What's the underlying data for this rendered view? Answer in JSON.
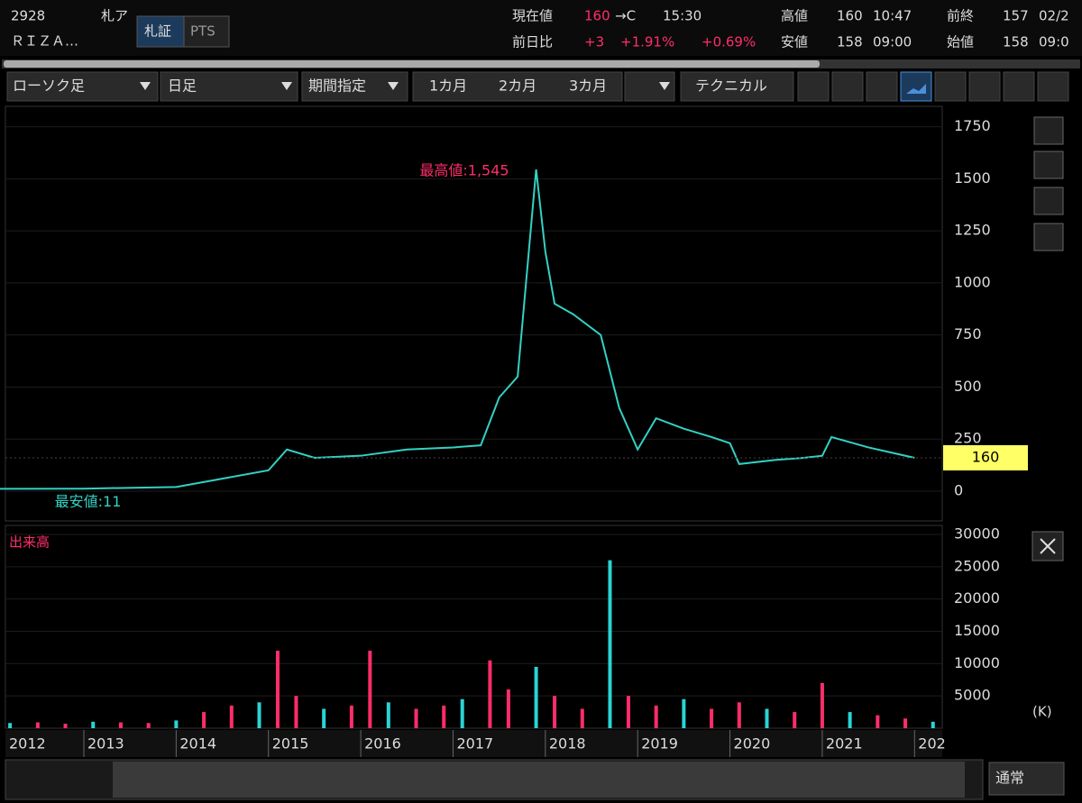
{
  "header": {
    "code": "2928",
    "market": "札ア",
    "name": "ＲＩＺＡ…",
    "tab_active": "札証",
    "tab_other": "PTS",
    "price_label": "現在値",
    "price": "160",
    "price_arrow": "→C",
    "price_time": "15:30",
    "high_label": "高値",
    "high": "160",
    "high_time": "10:47",
    "prev_label": "前終",
    "prev": "157",
    "prev_date": "02/2",
    "change_label": "前日比",
    "change": "+3",
    "change_pct": "+1.91%",
    "change_pct2": "+0.69%",
    "low_label": "安値",
    "low": "158",
    "low_time": "09:00",
    "open_label": "始値",
    "open": "158",
    "open_time": "09:0"
  },
  "toolbar": {
    "chart_type": "ローソク足",
    "interval": "日足",
    "period": "期間指定",
    "range1": "1カ月",
    "range2": "2カ月",
    "range3": "3カ月",
    "technical": "テクニカル"
  },
  "footer": {
    "mode": "通常"
  },
  "chart_data": [
    {
      "type": "line",
      "color": "#33d1c4",
      "ma_color": "#ff8fb0",
      "x": [
        2012.0,
        2013.0,
        2014.0,
        2014.5,
        2015.0,
        2015.2,
        2015.5,
        2016.0,
        2016.5,
        2017.0,
        2017.3,
        2017.5,
        2017.7,
        2017.9,
        2018.0,
        2018.1,
        2018.3,
        2018.6,
        2018.8,
        2019.0,
        2019.2,
        2019.5,
        2019.8,
        2020.0,
        2020.1,
        2020.5,
        2020.8,
        2021.0,
        2021.1,
        2021.5,
        2021.8,
        2022.0
      ],
      "values": [
        11,
        12,
        20,
        60,
        100,
        200,
        160,
        170,
        200,
        210,
        220,
        450,
        550,
        1545,
        1150,
        900,
        850,
        750,
        400,
        200,
        350,
        300,
        260,
        230,
        130,
        150,
        160,
        170,
        260,
        210,
        180,
        160
      ],
      "xlim": [
        2012.15,
        2022.3
      ],
      "ylim": [
        -143,
        1848
      ],
      "yticks": [
        0,
        250,
        500,
        750,
        1000,
        1250,
        1500,
        1750
      ],
      "current_value": 160,
      "max_label": "最高値:1,545",
      "min_label": "最安値:11"
    },
    {
      "type": "bar",
      "title": "出来高",
      "unit": "(K)",
      "color": "#ff2d6a",
      "alt_color": "#2ad4d4",
      "x": [
        2012.2,
        2012.5,
        2012.8,
        2013.1,
        2013.4,
        2013.7,
        2014.0,
        2014.3,
        2014.6,
        2014.9,
        2015.1,
        2015.3,
        2015.6,
        2015.9,
        2016.1,
        2016.3,
        2016.6,
        2016.9,
        2017.1,
        2017.4,
        2017.6,
        2017.9,
        2018.1,
        2018.4,
        2018.7,
        2018.9,
        2019.2,
        2019.5,
        2019.8,
        2020.1,
        2020.4,
        2020.7,
        2021.0,
        2021.3,
        2021.6,
        2021.9,
        2022.2
      ],
      "values": [
        800,
        900,
        700,
        1000,
        900,
        800,
        1200,
        2500,
        3500,
        4000,
        12000,
        5000,
        3000,
        3500,
        12000,
        4000,
        3000,
        3500,
        4500,
        10500,
        6000,
        9500,
        5000,
        3000,
        26000,
        5000,
        3500,
        4500,
        3000,
        4000,
        3000,
        2500,
        7000,
        2500,
        2000,
        1500,
        1000
      ],
      "xlim": [
        2012.15,
        2022.3
      ],
      "ylim": [
        0,
        30000
      ],
      "yticks": [
        5000,
        10000,
        15000,
        20000,
        25000,
        30000
      ],
      "xticks": [
        {
          "value": 2012,
          "label": "2012"
        },
        2013,
        2014,
        2015,
        2016,
        2017,
        2018,
        2019,
        2020,
        2021,
        {
          "value": 2022,
          "label": "202"
        }
      ]
    }
  ]
}
